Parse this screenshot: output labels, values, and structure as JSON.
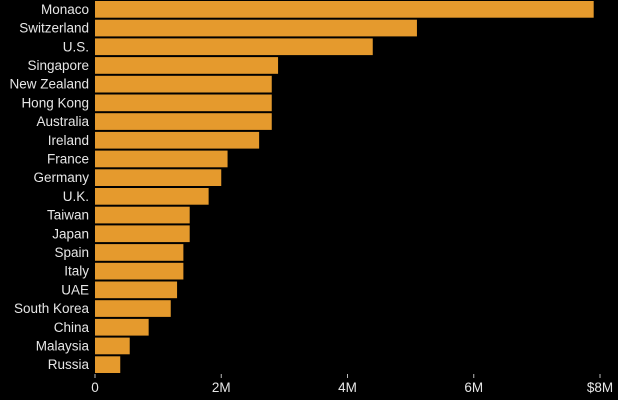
{
  "chart_data": {
    "type": "bar",
    "orientation": "horizontal",
    "categories": [
      "Monaco",
      "Switzerland",
      "U.S.",
      "Singapore",
      "New Zealand",
      "Hong Kong",
      "Australia",
      "Ireland",
      "France",
      "Germany",
      "U.K.",
      "Taiwan",
      "Japan",
      "Spain",
      "Italy",
      "UAE",
      "South Korea",
      "China",
      "Malaysia",
      "Russia"
    ],
    "values": [
      7.9,
      5.1,
      4.4,
      2.9,
      2.8,
      2.8,
      2.8,
      2.6,
      2.1,
      2.0,
      1.8,
      1.5,
      1.5,
      1.4,
      1.4,
      1.3,
      1.2,
      0.85,
      0.55,
      0.4
    ],
    "xlim": [
      0,
      8
    ],
    "x_ticks": [
      0,
      2,
      4,
      6,
      8
    ],
    "x_tick_labels": [
      "0",
      "2M",
      "4M",
      "6M",
      "$8M"
    ],
    "title": "",
    "xlabel": "",
    "ylabel": "",
    "grid": false,
    "legend": "none",
    "colors": {
      "bar": "#e59a2d",
      "bar_edge": "#000000",
      "background": "#000000",
      "text": "#e6e6e6",
      "tick": "#bbbbbb"
    }
  }
}
